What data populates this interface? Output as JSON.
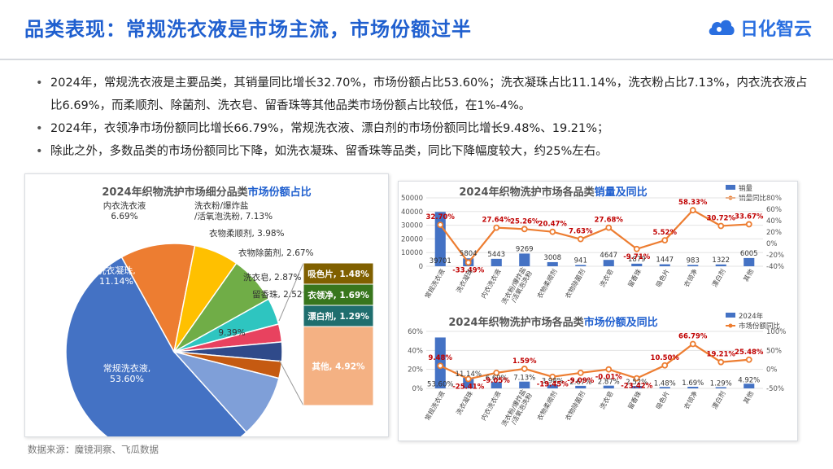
{
  "page": {
    "title": "品类表现：常规洗衣液是市场主流，市场份额过半",
    "logo_text": "日化智云",
    "bullets": [
      "2024年，常规洗衣液是主要品类，其销量同比增长32.70%，市场份额占比53.60%；洗衣凝珠占比11.14%，洗衣粉占比7.13%，内衣洗衣液占比6.69%，而柔顺剂、除菌剂、洗衣皂、留香珠等其他品类市场份额占比较低，在1%-4%。",
      "2024年，衣领净市场份额同比增长66.79%，常规洗衣液、漂白剂的市场份额同比增长9.48%、19.21%；",
      "除此之外，多数品类的市场份额同比下降，如洗衣凝珠、留香珠等品类，同比下降幅度较大，约25%左右。"
    ],
    "source": "数据来源：魔镜洞察、飞瓜数据"
  },
  "chart_data": [
    {
      "type": "pie",
      "title_prefix": "2024年织物洗护市场细分品类",
      "title_highlight": "市场份额占比",
      "slices": [
        {
          "label": "常规洗衣液,",
          "label2": "53.60%",
          "value": 53.6,
          "color": "#4472c4"
        },
        {
          "label": "洗衣凝珠,",
          "label2": "11.14%",
          "value": 11.14,
          "color": "#ed7d31"
        },
        {
          "label": "内衣洗衣液",
          "label2": "6.69%",
          "value": 6.69,
          "color": "#ffc000"
        },
        {
          "label": "洗衣粉/爆炸盐",
          "label2": "/活氧泡洗粉, 7.13%",
          "value": 7.13,
          "color": "#70ad47"
        },
        {
          "label": "衣物柔顺剂, 3.98%",
          "label2": "",
          "value": 3.98,
          "color": "#2ec5c0"
        },
        {
          "label": "衣物除菌剂, 2.67%",
          "label2": "",
          "value": 2.67,
          "color": "#e8425f"
        },
        {
          "label": "洗衣皂, 2.87%",
          "label2": "",
          "value": 2.87,
          "color": "#2f4a8a"
        },
        {
          "label": "留香珠, 2.52%",
          "label2": "",
          "value": 2.52,
          "color": "#c55a11"
        },
        {
          "label": "",
          "label2": "9.39%",
          "value": 9.39,
          "color": "#7f9fd8"
        }
      ],
      "others_breakdown": [
        {
          "label": "吸色片, 1.48%",
          "value": 1.48,
          "color": "#806000"
        },
        {
          "label": "衣领净, 1.69%",
          "value": 1.69,
          "color": "#38761d"
        },
        {
          "label": "漂白剂, 1.29%",
          "value": 1.29,
          "color": "#1f6e6e"
        },
        {
          "label": "其他, 4.92%",
          "value": 4.92,
          "color": "#f4b183"
        }
      ]
    },
    {
      "type": "bar",
      "title_prefix": "2024年织物洗护市场各品类",
      "title_highlight": "销量及同比",
      "categories": [
        "常规洗衣液",
        "洗衣凝珠",
        "内衣洗衣液",
        "洗衣粉/爆炸盐/活氧泡洗粉",
        "衣物柔顺剂",
        "衣物除菌剂",
        "洗衣皂",
        "留香珠",
        "吸色片",
        "衣领净",
        "漂白剂",
        "其他"
      ],
      "category_lines": [
        [
          "常规洗衣液"
        ],
        [
          "洗衣凝珠"
        ],
        [
          "内衣洗衣液"
        ],
        [
          "洗衣粉/爆炸盐",
          "/活氧泡洗粉"
        ],
        [
          "衣物柔顺剂"
        ],
        [
          "衣物除菌剂"
        ],
        [
          "洗衣皂"
        ],
        [
          "留香珠"
        ],
        [
          "吸色片"
        ],
        [
          "衣领净"
        ],
        [
          "漂白剂"
        ],
        [
          "其他"
        ]
      ],
      "series": [
        {
          "name": "销量",
          "values": [
            39701,
            5804,
            5443,
            9269,
            3008,
            941,
            4647,
            1879,
            1447,
            983,
            1322,
            6005
          ],
          "labels": [
            "39701",
            "5804",
            "5443",
            "9269",
            "3008",
            "941",
            "4647",
            "1879",
            "1447",
            "983",
            "1322",
            "6005"
          ]
        },
        {
          "name": "销量同比",
          "values": [
            32.7,
            -33.49,
            27.64,
            25.26,
            20.47,
            7.63,
            27.68,
            -9.71,
            5.52,
            58.33,
            30.72,
            33.67
          ],
          "labels": [
            "32.70%",
            "-33.49%",
            "27.64%",
            "25.26%",
            "20.47%",
            "7.63%",
            "27.68%",
            "-9.71%",
            "5.52%",
            "58.33%",
            "30.72%",
            "33.67%"
          ]
        }
      ],
      "y_left_ticks": [
        "50000",
        "40000",
        "30000",
        "20000",
        "10000",
        "0"
      ],
      "y_right_ticks": [
        "80%",
        "60%",
        "40%",
        "20%",
        "0%",
        "-20%",
        "-40%"
      ],
      "ylim_left": [
        0,
        50000
      ],
      "ylim_right": [
        -40,
        80
      ],
      "bar_color": "#4472c4",
      "line_color": "#ed7d31"
    },
    {
      "type": "bar",
      "title_prefix": "2024年织物洗护市场各品类",
      "title_highlight": "市场份额及同比",
      "categories": [
        "常规洗衣液",
        "洗衣凝珠",
        "内衣洗衣液",
        "洗衣粉/爆炸盐/活氧泡洗粉",
        "衣物柔顺剂",
        "衣物除菌剂",
        "洗衣皂",
        "留香珠",
        "吸色片",
        "衣领净",
        "漂白剂",
        "其他"
      ],
      "category_lines": [
        [
          "常规洗衣液"
        ],
        [
          "洗衣凝珠"
        ],
        [
          "内衣洗衣液"
        ],
        [
          "洗衣粉/爆炸盐",
          "/活氧泡洗粉"
        ],
        [
          "衣物柔顺剂"
        ],
        [
          "衣物除菌剂"
        ],
        [
          "洗衣皂"
        ],
        [
          "留香珠"
        ],
        [
          "吸色片"
        ],
        [
          "衣领净"
        ],
        [
          "漂白剂"
        ],
        [
          "其他"
        ]
      ],
      "series": [
        {
          "name": "2024年",
          "values": [
            53.6,
            11.14,
            6.69,
            7.13,
            3.98,
            2.67,
            2.87,
            2.52,
            1.48,
            1.69,
            1.29,
            4.92
          ],
          "labels": [
            "53.60%",
            "11.14%",
            "6.69%",
            "7.13%",
            "3.98%",
            "2.67%",
            "2.87%",
            "2.52%",
            "1.48%",
            "1.69%",
            "1.29%",
            "4.92%"
          ]
        },
        {
          "name": "市场份额同比",
          "values": [
            9.48,
            -25.41,
            -9.05,
            1.59,
            -19.45,
            -9.09,
            -0.01,
            -23.42,
            10.5,
            66.79,
            19.21,
            25.48
          ],
          "labels": [
            "9.48%",
            "-25.41%",
            "-9.05%",
            "1.59%",
            "-19.45%",
            "-9.09%",
            "-0.01%",
            "-23.42%",
            "10.50%",
            "66.79%",
            "19.21%",
            "25.48%"
          ]
        }
      ],
      "y_left_ticks": [
        "60%",
        "40%",
        "20%",
        "0%"
      ],
      "y_right_ticks": [
        "100%",
        "50%",
        "0%",
        "-50%"
      ],
      "ylim_left": [
        0,
        60
      ],
      "ylim_right": [
        -50,
        100
      ],
      "bar_color": "#4472c4",
      "line_color": "#ed7d31"
    }
  ]
}
